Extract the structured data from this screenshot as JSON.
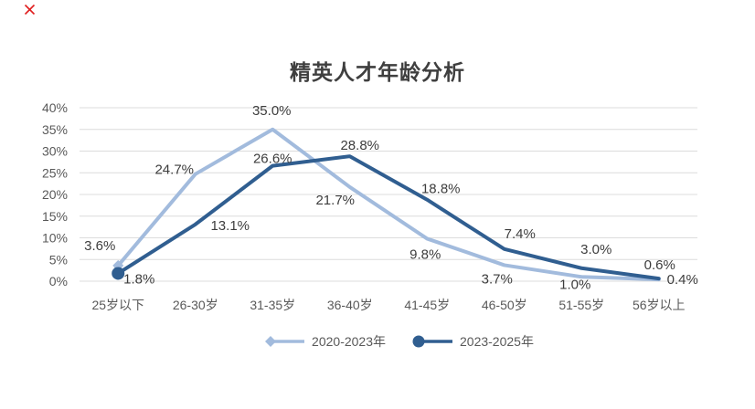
{
  "page": {
    "background": "#ffffff",
    "icons": {
      "broken_image": "red-x"
    }
  },
  "chart_data": {
    "type": "line",
    "title": "精英人才年龄分析",
    "categories": [
      "25岁以下",
      "26-30岁",
      "31-35岁",
      "36-40岁",
      "41-45岁",
      "46-50岁",
      "51-55岁",
      "56岁以上"
    ],
    "series": [
      {
        "name": "2020-2023年",
        "color": "#a2bbdd",
        "marker": "diamond",
        "values": [
          3.6,
          24.7,
          35.0,
          21.7,
          9.8,
          3.7,
          1.0,
          0.4
        ],
        "labels": [
          "3.6%",
          "24.7%",
          "35.0%",
          "21.7%",
          "9.8%",
          "3.7%",
          "1.0%",
          "0.4%"
        ],
        "label_offsets": [
          [
            -20,
            -22
          ],
          [
            -23,
            -5
          ],
          [
            -1,
            -21
          ],
          [
            -16,
            14
          ],
          [
            -2,
            17
          ],
          [
            -8,
            15
          ],
          [
            -7,
            8
          ],
          [
            26,
            0
          ]
        ]
      },
      {
        "name": "2023-2025年",
        "color": "#305e90",
        "marker": "circle",
        "values": [
          1.8,
          13.1,
          26.6,
          28.8,
          18.8,
          7.4,
          3.0,
          0.6
        ],
        "labels": [
          "1.8%",
          "13.1%",
          "26.6%",
          "28.8%",
          "18.8%",
          "7.4%",
          "3.0%",
          "0.6%"
        ],
        "label_offsets": [
          [
            23,
            6
          ],
          [
            38,
            1
          ],
          [
            0,
            -8
          ],
          [
            11,
            -12
          ],
          [
            15,
            -12
          ],
          [
            17,
            -17
          ],
          [
            16,
            -21
          ],
          [
            1,
            -15
          ]
        ]
      }
    ],
    "y_axis": {
      "min": 0,
      "max": 40,
      "step": 5,
      "tick_labels": [
        "0%",
        "5%",
        "10%",
        "15%",
        "20%",
        "25%",
        "30%",
        "35%",
        "40%"
      ]
    },
    "x_axis": {
      "label_suffix": "岁"
    },
    "grid": true,
    "legend_position": "bottom",
    "markers_first_point_only": true,
    "colors": {
      "gridline": "#dcdcdc",
      "axis_text": "#595959",
      "data_label": "#3d3d3d",
      "title": "#3f3f3f",
      "broken_image_mark": "#e01f1f"
    }
  }
}
